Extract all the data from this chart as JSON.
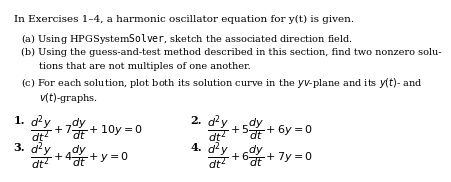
{
  "bg_color": "#ffffff",
  "text_color": "#000000",
  "title_line": "In Exercises 1–4, a harmonic oscillator equation for y(t) is given.",
  "line_a": "(a) Using HPGSystem​Solver, sketch the associated direction field.",
  "line_b1": "(b) Using the guess-and-test method described in this section, find two nonzero solu-",
  "line_b2": "tions that are not multiples of one another.",
  "line_c1": "(c) For each solution, plot both its solution curve in the yv-plane and its y(t)- and",
  "line_c2": "v(t)-graphs.",
  "eq1": "$\\frac{d^2y}{dt^2} + 7\\frac{dy}{dt} + 10y = 0$",
  "eq2": "$\\frac{d^2y}{dt^2} + 5\\frac{dy}{dt} + 6y = 0$",
  "eq3": "$\\frac{d^2y}{dt^2} + 4\\frac{dy}{dt} + y = 0$",
  "eq4": "$\\frac{d^2y}{dt^2} + 6\\frac{dy}{dt} + 7y = 0$",
  "fs_title": 7.5,
  "fs_body": 7.0,
  "fs_eq": 8.0,
  "fs_label": 8.0
}
